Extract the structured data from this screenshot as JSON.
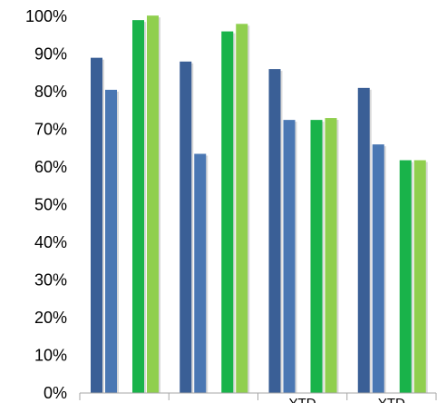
{
  "chart_data": {
    "type": "bar",
    "categories": [
      "",
      "",
      "YTD",
      "YTD"
    ],
    "series": [
      {
        "values": [
          89,
          88,
          86,
          81
        ],
        "color": "#3a5f96"
      },
      {
        "values": [
          80.5,
          63.5,
          72.5,
          66
        ],
        "color": "#4a77b3"
      },
      {
        "values": [
          99,
          96,
          72.5,
          61.8
        ],
        "color": "#19b34a"
      },
      {
        "values": [
          100.2,
          98,
          73,
          61.8
        ],
        "color": "#90cf4e"
      }
    ],
    "yticks": [
      "0%",
      "10%",
      "20%",
      "30%",
      "40%",
      "50%",
      "60%",
      "70%",
      "80%",
      "90%",
      "100%"
    ],
    "ylim": [
      0,
      100
    ],
    "grid": false,
    "legend": "none"
  }
}
